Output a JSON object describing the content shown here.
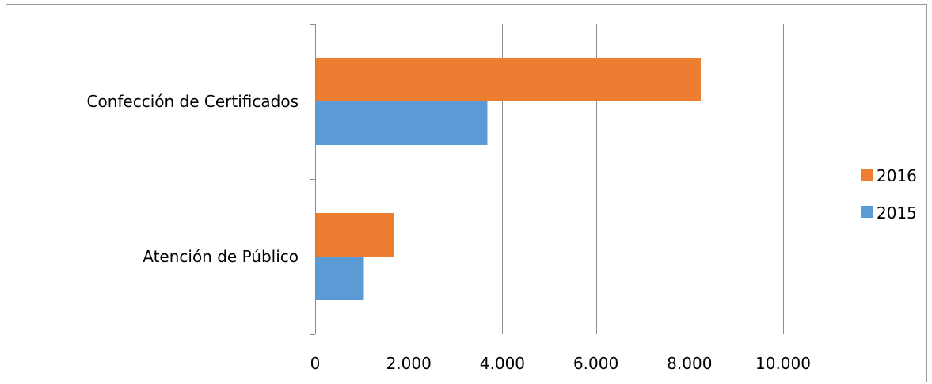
{
  "chart_data": {
    "type": "bar",
    "orientation": "horizontal",
    "categories": [
      "Confección de Certificados",
      "Atención de Público"
    ],
    "series": [
      {
        "name": "2016",
        "color": "#ED7D31",
        "values": [
          8240,
          1690
        ]
      },
      {
        "name": "2015",
        "color": "#5B9BD5",
        "values": [
          3680,
          1040
        ]
      }
    ],
    "xlim": [
      0,
      10000
    ],
    "x_ticks": [
      0,
      2000,
      4000,
      6000,
      8000,
      10000
    ],
    "x_tick_labels": [
      "0",
      "2.000",
      "4.000",
      "6.000",
      "8.000",
      "10.000"
    ],
    "grid": "vertical",
    "legend": {
      "position": "right",
      "entries": [
        "2016",
        "2015"
      ]
    }
  }
}
